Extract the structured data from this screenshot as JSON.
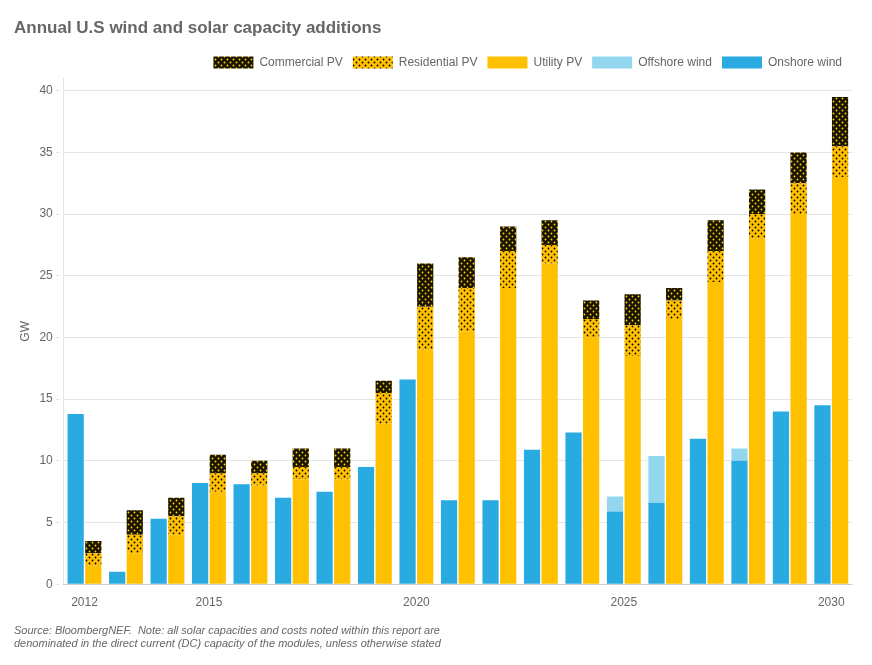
{
  "chart_data": {
    "type": "bar",
    "title": "Annual U.S wind and solar capacity additions",
    "y_label": "GW",
    "annotations": [
      "Source: BloombergNEF.  Note: all solar capacities and costs noted within this report are\ndenominated in the direct current (DC) capacity of the modules, unless otherwise stated"
    ],
    "categories": [
      2012,
      null,
      null,
      2015,
      null,
      null,
      null,
      null,
      2020,
      null,
      null,
      null,
      null,
      2025,
      null,
      null,
      null,
      null,
      2030
    ],
    "series": [
      {
        "name": "Onshore wind",
        "color": "#29ABE2",
        "values": [
          13.8,
          1.0,
          5.3,
          8.2,
          8.1,
          7.0,
          7.5,
          9.5,
          16.6,
          6.8,
          6.8,
          10.9,
          12.3,
          5.9,
          6.6,
          11.8,
          10.0,
          14.0,
          14.5
        ]
      },
      {
        "name": "Offshore wind",
        "color": "#93D7EF",
        "values": [
          0.0,
          0.0,
          0.0,
          0.0,
          0.0,
          0.0,
          0.0,
          0.0,
          0.0,
          0.0,
          0.0,
          0.0,
          0.0,
          1.2,
          3.8,
          0.0,
          1.0,
          0.0,
          0.0
        ]
      },
      {
        "name": "Utility PV",
        "color": "#FFC000",
        "values": [
          1.5,
          2.5,
          4.0,
          7.5,
          8.0,
          8.5,
          8.5,
          13.0,
          19.0,
          20.5,
          24.0,
          26.0,
          20.0,
          18.5,
          21.5,
          24.5,
          28.0,
          30.0,
          33.0
        ]
      },
      {
        "name": "Residential PV",
        "color": "#FFC000",
        "marker": "dots",
        "values": [
          1.0,
          1.5,
          1.5,
          1.5,
          1.0,
          1.0,
          1.0,
          2.5,
          3.5,
          3.5,
          3.0,
          1.5,
          1.5,
          2.5,
          1.5,
          2.5,
          2.0,
          2.5,
          2.5
        ]
      },
      {
        "name": "Commercial PV",
        "color": "#1A1400",
        "marker": "dots",
        "values": [
          1.0,
          2.0,
          1.5,
          1.5,
          1.0,
          1.5,
          1.5,
          1.0,
          3.5,
          2.5,
          2.0,
          2.0,
          1.5,
          2.5,
          1.0,
          2.5,
          2.0,
          2.5,
          4.0
        ]
      }
    ],
    "stacked": [
      [
        "Onshore wind",
        "Offshore wind"
      ],
      [
        "Utility PV",
        "Residential PV",
        "Commercial PV"
      ]
    ],
    "ylim": [
      0,
      41
    ],
    "yticks": [
      0,
      5,
      10,
      15,
      20,
      25,
      30,
      35,
      40
    ],
    "grid": true,
    "legend": "top right"
  }
}
